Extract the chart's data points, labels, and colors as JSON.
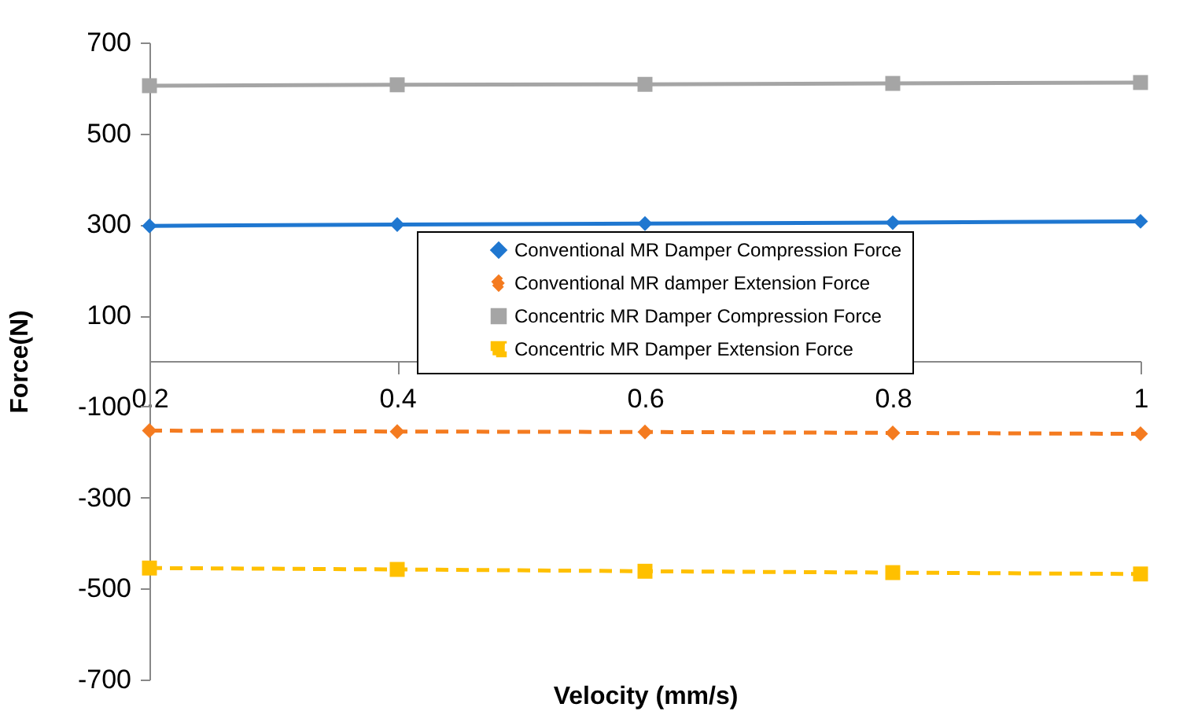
{
  "chart_data": {
    "type": "line",
    "xlabel": "Velocity (mm/s)",
    "ylabel": "Force(N)",
    "x": [
      0.2,
      0.4,
      0.6,
      0.8,
      1
    ],
    "xlim": [
      0.2,
      1
    ],
    "xticks": [
      0.2,
      0.4,
      0.6,
      0.8,
      1
    ],
    "ylim": [
      -700,
      700
    ],
    "yticks": [
      -700,
      -500,
      -300,
      -100,
      100,
      300,
      500,
      700
    ],
    "grid": false,
    "legend": "right",
    "series": [
      {
        "name": "Conventional MR Damper Compression Force",
        "color": "#1f77d0",
        "marker": "diamond",
        "line_style": "solid",
        "values": [
          297,
          300,
          302,
          304,
          307
        ]
      },
      {
        "name": "Conventional MR damper Extension Force",
        "color": "#f47b20",
        "marker": "diamond",
        "line_style": "dashed",
        "values": [
          -153,
          -155,
          -156,
          -158,
          -160
        ]
      },
      {
        "name": "Concentric MR Damper Compression Force",
        "color": "#a5a5a5",
        "marker": "square",
        "line_style": "solid",
        "values": [
          605,
          607,
          608,
          610,
          612
        ]
      },
      {
        "name": "Concentric MR Damper Extension Force",
        "color": "#ffc000",
        "marker": "square",
        "line_style": "dashed",
        "values": [
          -455,
          -458,
          -462,
          -465,
          -468
        ]
      }
    ]
  }
}
